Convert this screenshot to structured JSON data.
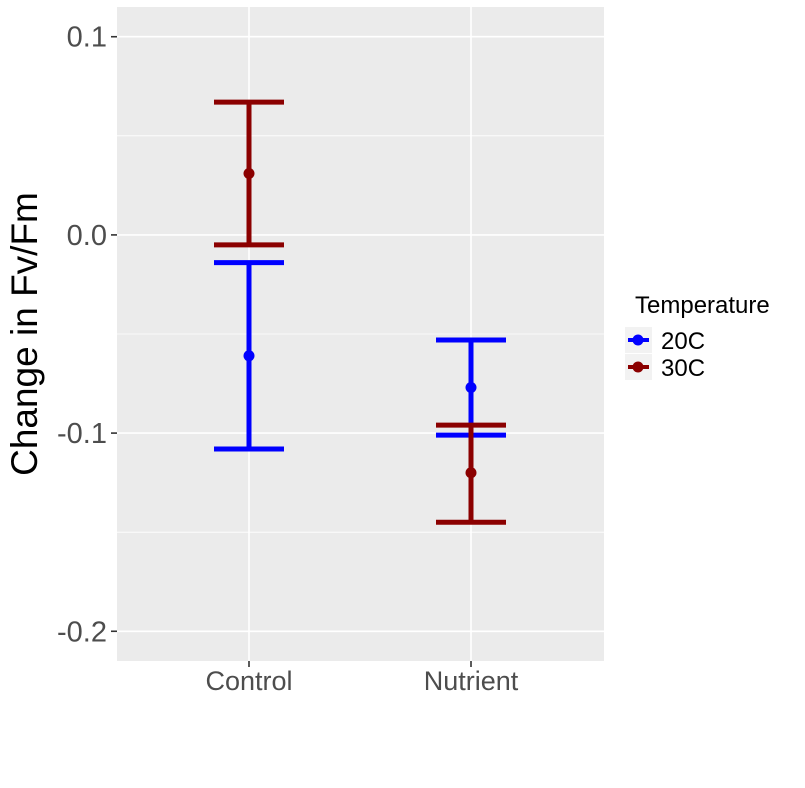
{
  "chart_data": {
    "type": "errorbar",
    "title": "",
    "xlabel": "",
    "ylabel": "Change in Fv/Fm",
    "categories": [
      "Control",
      "Nutrient"
    ],
    "ylim": [
      -0.215,
      0.115
    ],
    "y_ticks": [
      -0.2,
      -0.1,
      0.0,
      0.1
    ],
    "y_tick_labels": [
      "-0.2",
      "-0.1",
      "0.0",
      "0.1"
    ],
    "grid": true,
    "legend": {
      "title": "Temperature",
      "position": "right"
    },
    "series": [
      {
        "name": "20C",
        "color": "#0000ff",
        "points": [
          {
            "category": "Control",
            "mean": -0.061,
            "lower": -0.108,
            "upper": -0.014
          },
          {
            "category": "Nutrient",
            "mean": -0.077,
            "lower": -0.101,
            "upper": -0.053
          }
        ]
      },
      {
        "name": "30C",
        "color": "#8b0000",
        "points": [
          {
            "category": "Control",
            "mean": 0.031,
            "lower": -0.005,
            "upper": 0.067
          },
          {
            "category": "Nutrient",
            "mean": -0.12,
            "lower": -0.145,
            "upper": -0.096
          }
        ]
      }
    ]
  }
}
